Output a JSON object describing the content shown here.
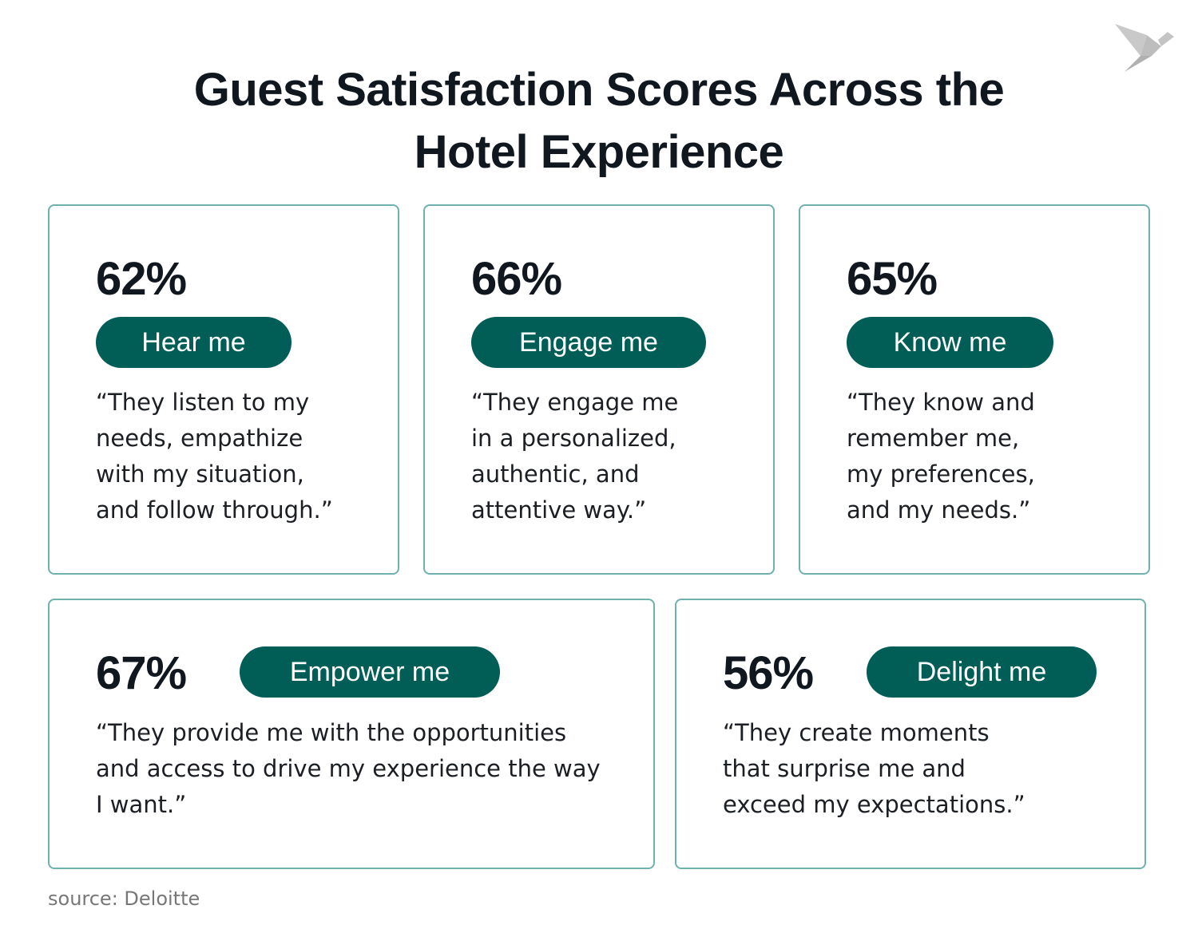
{
  "title": {
    "line1": "Guest Satisfaction Scores Across the",
    "line2": "Hotel Experience"
  },
  "colors": {
    "accent": "#005e57",
    "border": "#6fb1ac",
    "text": "#11171f"
  },
  "logo": {
    "icon": "origami-bird-icon"
  },
  "cards": [
    {
      "percent": "62%",
      "label": "Hear me",
      "quote": [
        "“They listen to my",
        "needs, empathize",
        "with my situation,",
        "and follow through.”"
      ]
    },
    {
      "percent": "66%",
      "label": "Engage me",
      "quote": [
        "“They engage me",
        "in a personalized,",
        "authentic, and",
        "attentive way.”"
      ]
    },
    {
      "percent": "65%",
      "label": "Know me",
      "quote": [
        "“They know and",
        "remember me,",
        "my preferences,",
        "and my needs.”"
      ]
    },
    {
      "percent": "67%",
      "label": "Empower me",
      "quote": [
        "“They provide me with the opportunities",
        "and access to drive my experience the way",
        "I want.”"
      ]
    },
    {
      "percent": "56%",
      "label": "Delight me",
      "quote": [
        "“They create moments",
        "that surprise me and",
        "exceed my expectations.”"
      ]
    }
  ],
  "source": "source: Deloitte"
}
